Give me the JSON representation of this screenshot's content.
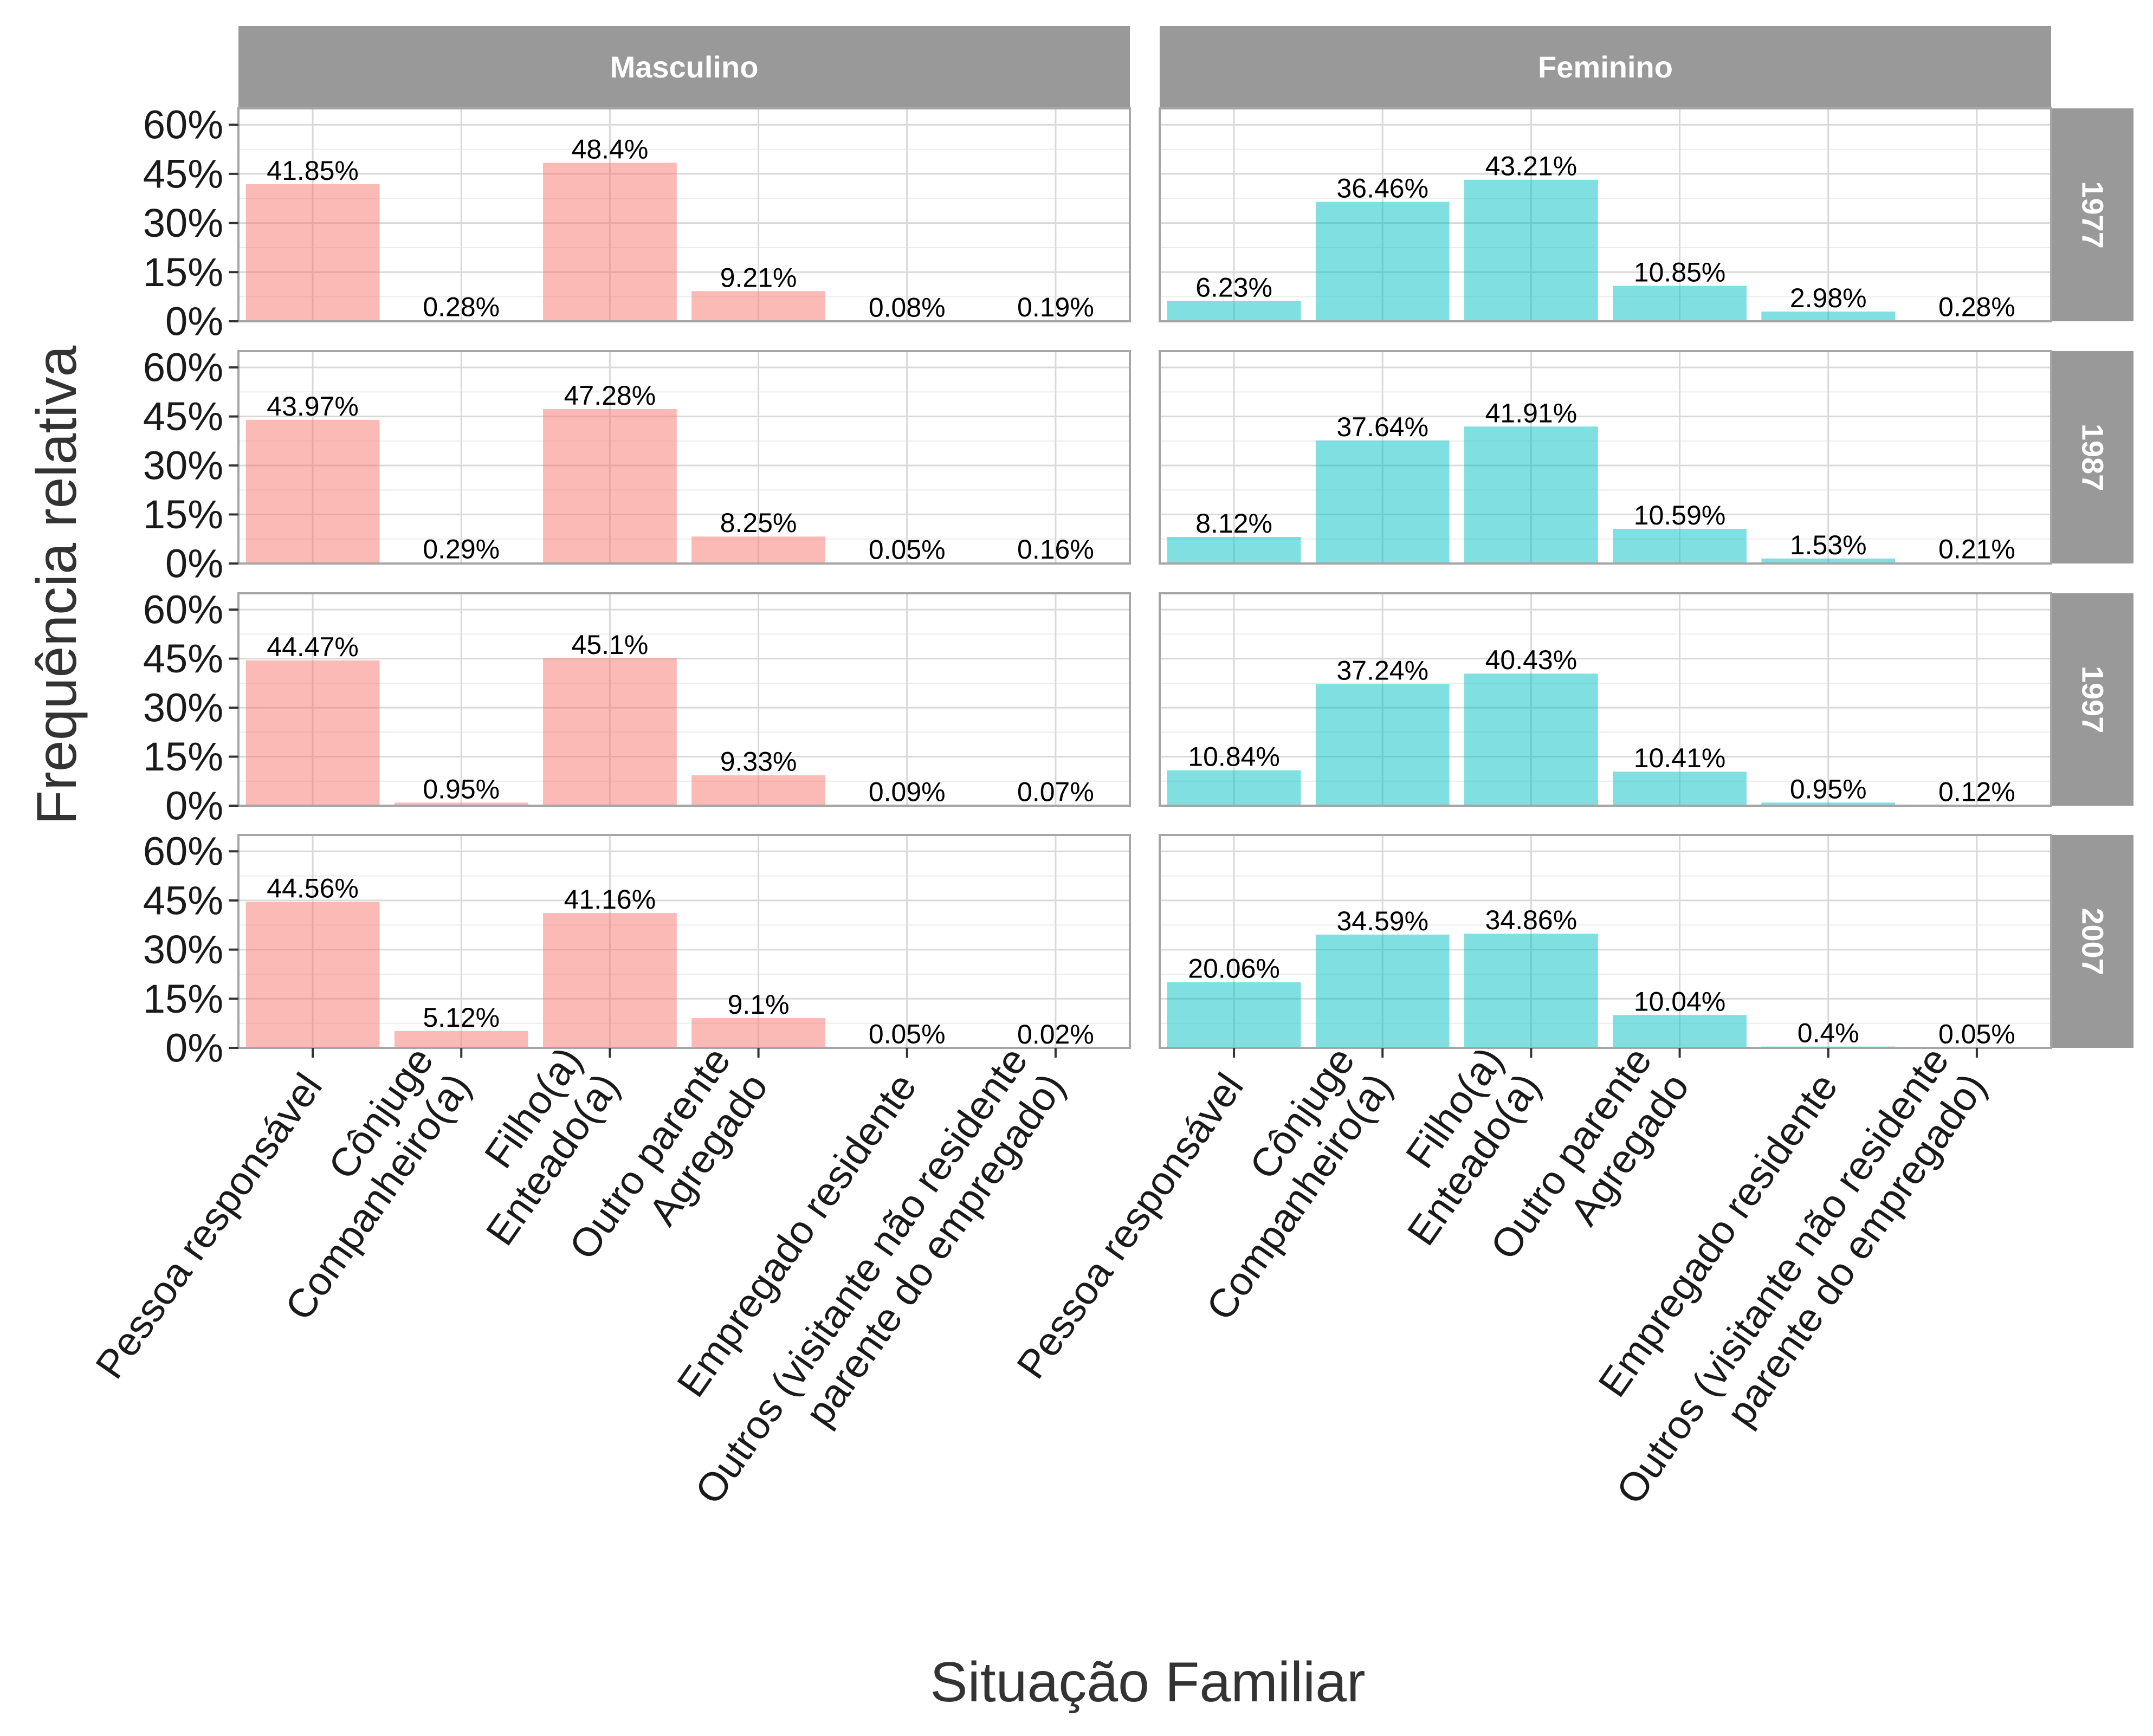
{
  "chart_data": {
    "type": "bar",
    "title": "",
    "xlabel": "Situação Familiar",
    "ylabel": "Frequência relativa",
    "ylim": [
      0,
      65
    ],
    "yticks": [
      "60%",
      "45%",
      "30%",
      "15%",
      "0%"
    ],
    "grid": true,
    "facet_columns": [
      "Masculino",
      "Feminino"
    ],
    "facet_rows": [
      "1977",
      "1987",
      "1997",
      "2007"
    ],
    "categories": [
      [
        "Pessoa responsável"
      ],
      [
        "Cônjuge",
        "Companheiro(a)"
      ],
      [
        "Filho(a)",
        "Enteado(a)"
      ],
      [
        "Outro parente",
        "Agregado"
      ],
      [
        "Empregado residente"
      ],
      [
        "Outros (visitante não residente",
        "parente do empregado)"
      ]
    ],
    "colors": {
      "Masculino": "#F8766D",
      "Feminino": "#00BFC4",
      "strip": "#999999"
    },
    "panels": [
      {
        "sex": "Masculino",
        "year": "1977",
        "values": [
          41.85,
          0.28,
          48.4,
          9.21,
          0.08,
          0.19
        ],
        "labels": [
          "41.85%",
          "0.28%",
          "48.4%",
          "9.21%",
          "0.08%",
          "0.19%"
        ]
      },
      {
        "sex": "Feminino",
        "year": "1977",
        "values": [
          6.23,
          36.46,
          43.21,
          10.85,
          2.98,
          0.28
        ],
        "labels": [
          "6.23%",
          "36.46%",
          "43.21%",
          "10.85%",
          "2.98%",
          "0.28%"
        ]
      },
      {
        "sex": "Masculino",
        "year": "1987",
        "values": [
          43.97,
          0.29,
          47.28,
          8.25,
          0.05,
          0.16
        ],
        "labels": [
          "43.97%",
          "0.29%",
          "47.28%",
          "8.25%",
          "0.05%",
          "0.16%"
        ]
      },
      {
        "sex": "Feminino",
        "year": "1987",
        "values": [
          8.12,
          37.64,
          41.91,
          10.59,
          1.53,
          0.21
        ],
        "labels": [
          "8.12%",
          "37.64%",
          "41.91%",
          "10.59%",
          "1.53%",
          "0.21%"
        ]
      },
      {
        "sex": "Masculino",
        "year": "1997",
        "values": [
          44.47,
          0.95,
          45.1,
          9.33,
          0.09,
          0.07
        ],
        "labels": [
          "44.47%",
          "0.95%",
          "45.1%",
          "9.33%",
          "0.09%",
          "0.07%"
        ]
      },
      {
        "sex": "Feminino",
        "year": "1997",
        "values": [
          10.84,
          37.24,
          40.43,
          10.41,
          0.95,
          0.12
        ],
        "labels": [
          "10.84%",
          "37.24%",
          "40.43%",
          "10.41%",
          "0.95%",
          "0.12%"
        ]
      },
      {
        "sex": "Masculino",
        "year": "2007",
        "values": [
          44.56,
          5.12,
          41.16,
          9.1,
          0.05,
          0.02
        ],
        "labels": [
          "44.56%",
          "5.12%",
          "41.16%",
          "9.1%",
          "0.05%",
          "0.02%"
        ]
      },
      {
        "sex": "Feminino",
        "year": "2007",
        "values": [
          20.06,
          34.59,
          34.86,
          10.04,
          0.4,
          0.05
        ],
        "labels": [
          "20.06%",
          "34.59%",
          "34.86%",
          "10.04%",
          "0.4%",
          "0.05%"
        ]
      }
    ]
  }
}
